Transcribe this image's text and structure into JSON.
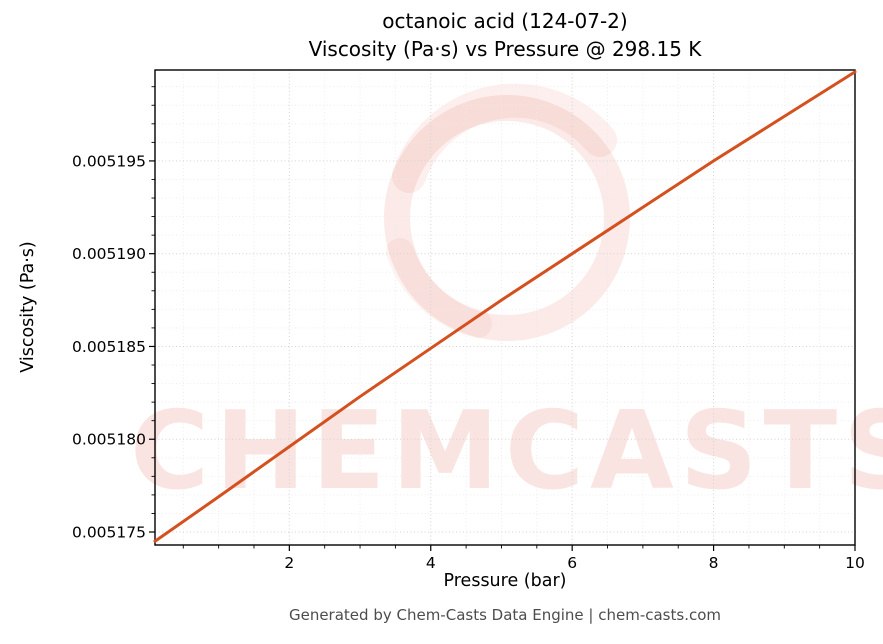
{
  "footer": {
    "text": "Generated by Chem-Casts Data Engine | chem-casts.com"
  },
  "chart_data": {
    "type": "line",
    "title_line1": "octanoic acid (124-07-2)",
    "title_line2": "Viscosity (Pa·s) vs Pressure @ 298.15 K",
    "xlabel": "Pressure (bar)",
    "ylabel": "Viscosity (Pa·s)",
    "xlim": [
      0.1,
      10
    ],
    "ylim": [
      0.0051743,
      0.0051999
    ],
    "xticks": {
      "values": [
        2,
        4,
        6,
        8,
        10
      ],
      "labels": [
        "2",
        "4",
        "6",
        "8",
        "10"
      ]
    },
    "yticks": {
      "values": [
        0.005175,
        0.00518,
        0.005185,
        0.00519,
        0.005195
      ],
      "labels": [
        "0.005175",
        "0.005180",
        "0.005185",
        "0.005190",
        "0.005195"
      ]
    },
    "minor_x_step": 0.5,
    "minor_y_step": 1e-06,
    "grid": true,
    "legend": "none",
    "series": [
      {
        "name": "viscosity of octanoic acid @ 298.15 K",
        "color": "#d4501e",
        "x": [
          0.1,
          1,
          2,
          3,
          4,
          5,
          6,
          7,
          8,
          9,
          10
        ],
        "y": [
          0.0051745,
          0.0051769,
          0.0051796,
          0.0051823,
          0.0051849,
          0.0051875,
          0.00519,
          0.0051925,
          0.005195,
          0.0051974,
          0.0051998
        ]
      }
    ],
    "watermark": {
      "text": "CHEMCASTS",
      "color": "#e0604a"
    }
  }
}
